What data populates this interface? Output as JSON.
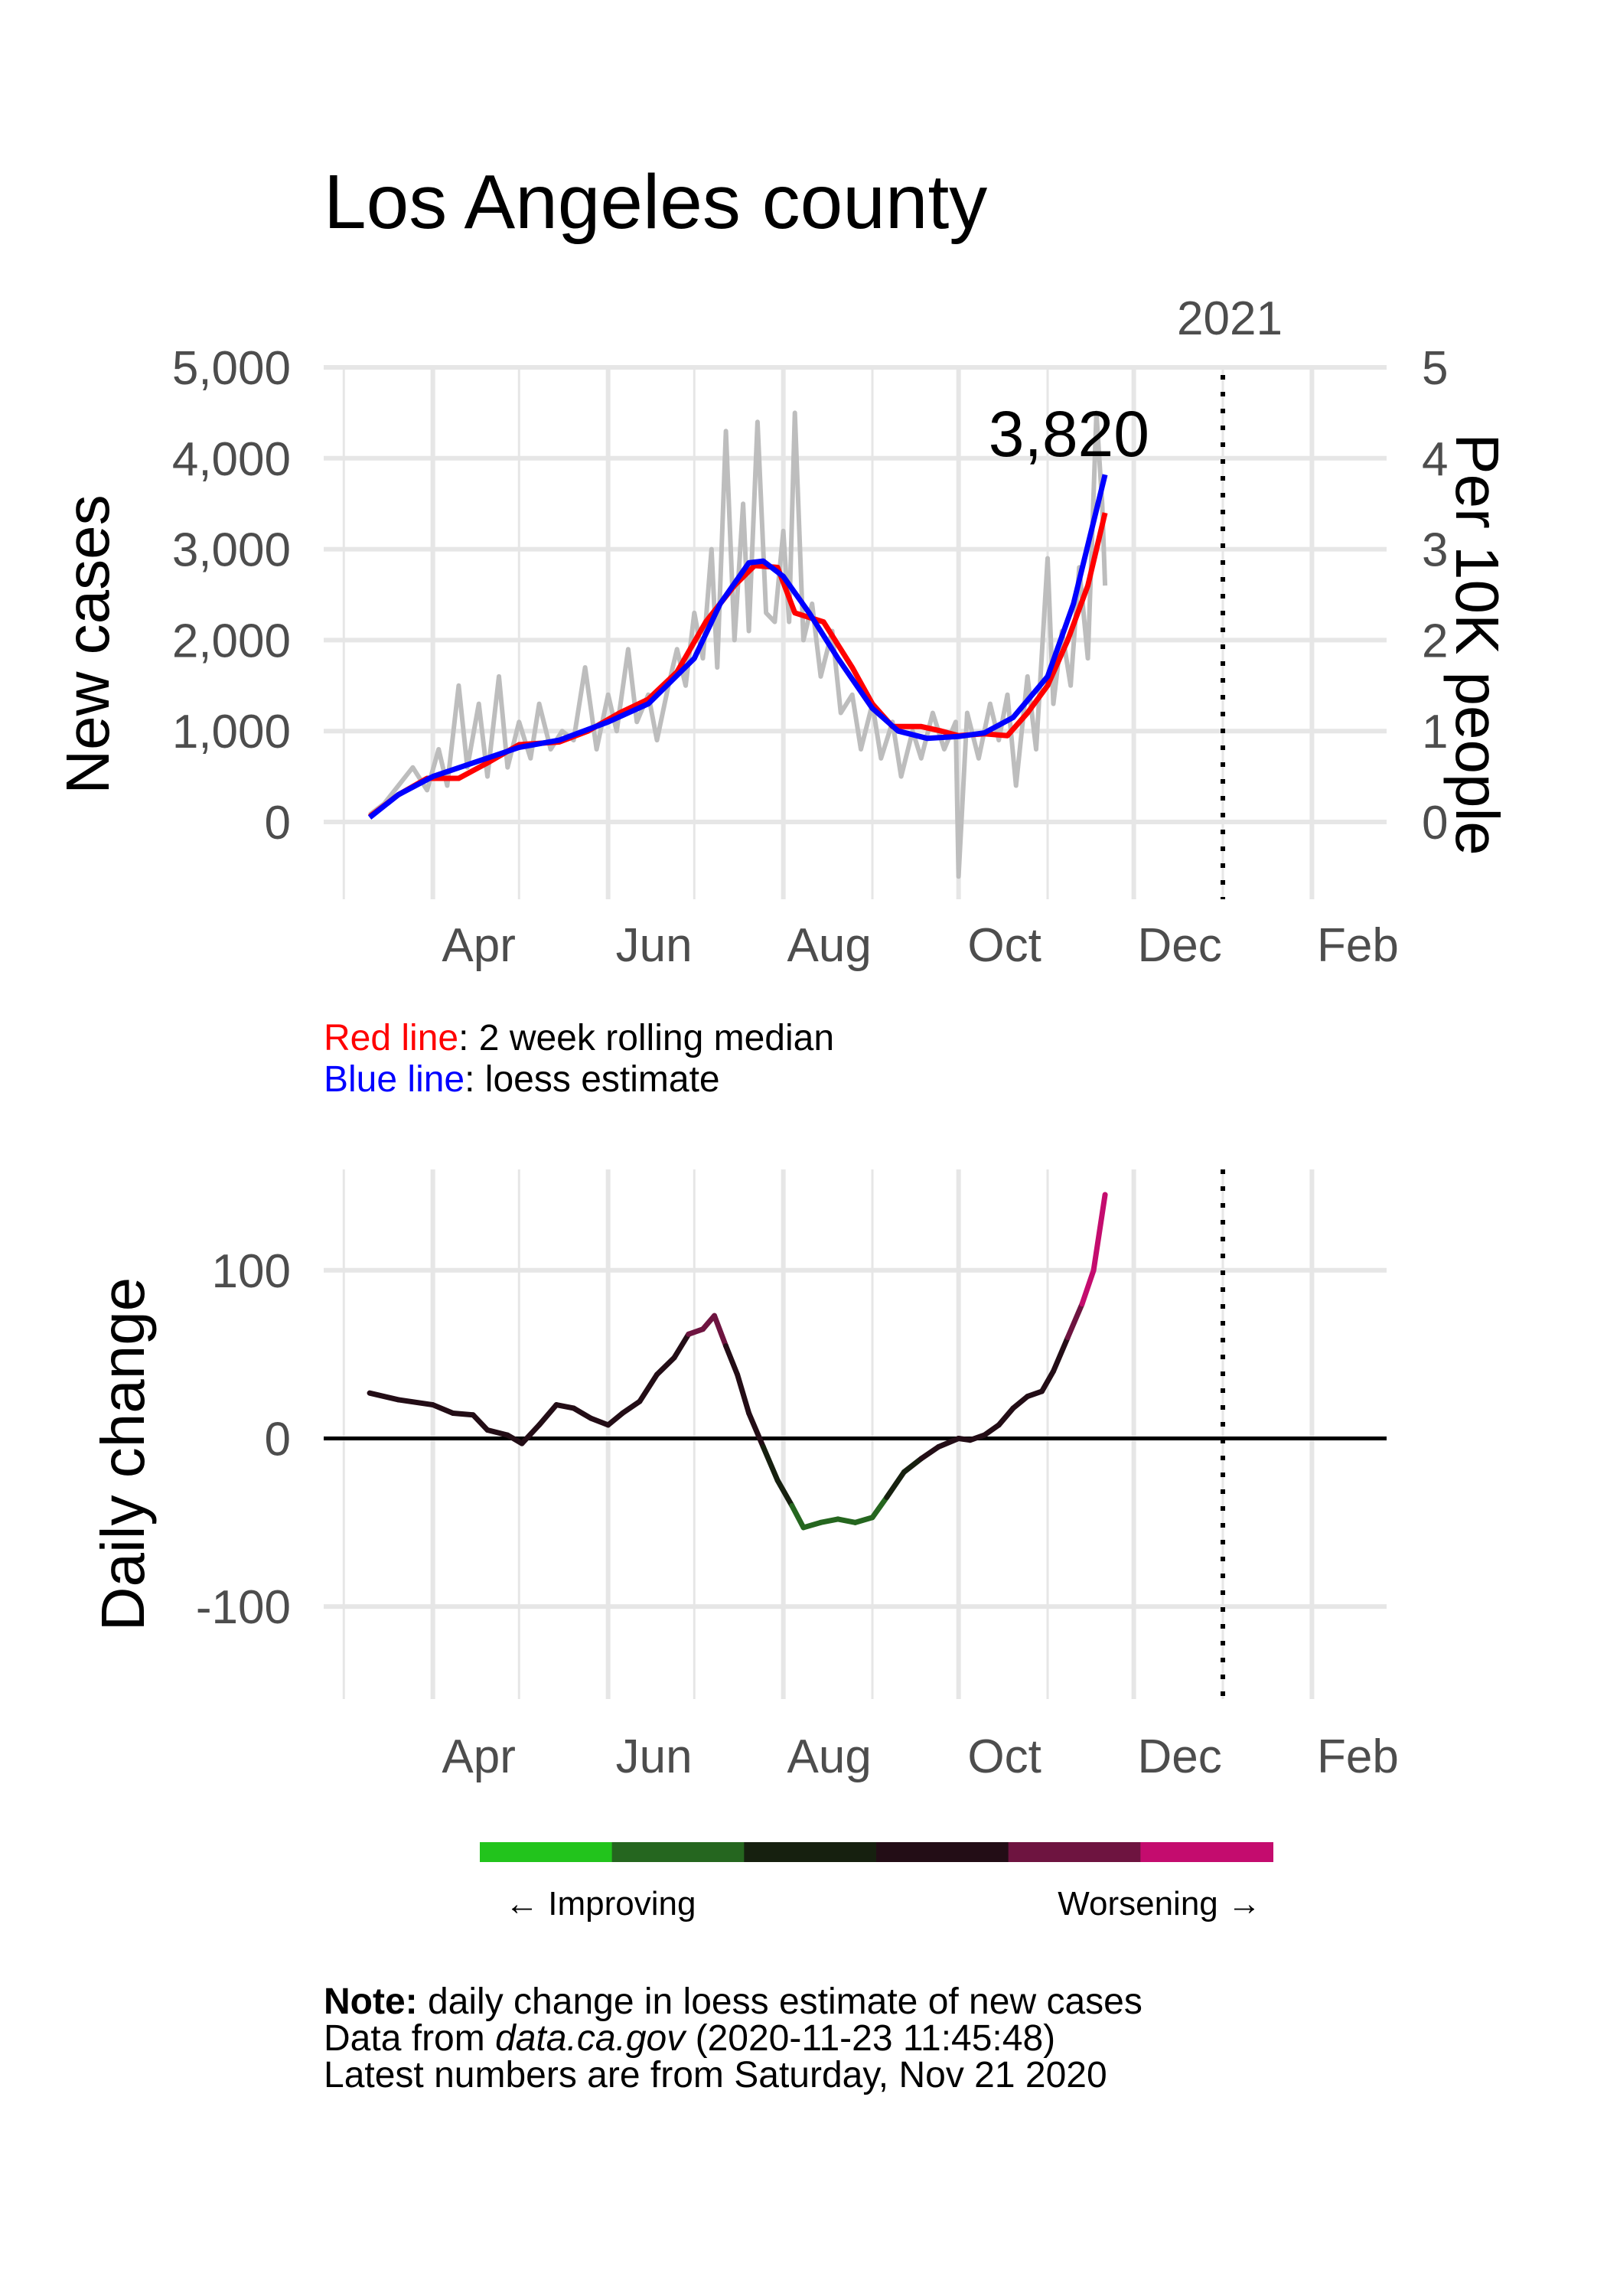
{
  "title": "Los Angeles county",
  "year_marker_label": "2021",
  "latest_value_label": "3,820",
  "top_chart": {
    "ylabel": "New cases",
    "y2label": "Per 10K people",
    "yticks": [
      "5,000",
      "4,000",
      "3,000",
      "2,000",
      "1,000",
      "0"
    ],
    "y2ticks": [
      "5",
      "4",
      "3",
      "2",
      "1",
      "0"
    ],
    "xticks": [
      "Apr",
      "Jun",
      "Aug",
      "Oct",
      "Dec",
      "Feb"
    ]
  },
  "legend": {
    "red_label": "Red line",
    "red_text": ": 2 week rolling median",
    "blue_label": "Blue line",
    "blue_text": ": loess estimate"
  },
  "bottom_chart": {
    "ylabel": "Daily change",
    "yticks": [
      "100",
      "0",
      "-100"
    ],
    "xticks": [
      "Apr",
      "Jun",
      "Aug",
      "Oct",
      "Dec",
      "Feb"
    ]
  },
  "color_scale": {
    "left_label": "← Improving",
    "right_label": "Worsening →",
    "colors": [
      "#22c41c",
      "#25661f",
      "#16200f",
      "#230d16",
      "#6e1440",
      "#c40c6e"
    ]
  },
  "note": {
    "bold": "Note:",
    "line1": " daily change in loess estimate of new cases",
    "line2_pre": "Data from ",
    "line2_italic": "data.ca.gov",
    "line2_post": " (2020-11-23 11:45:48)",
    "line3": "Latest numbers are from Saturday, Nov 21 2020"
  },
  "colors": {
    "raw": "#bdbdbd",
    "median": "#ff0000",
    "loess": "#0000ff",
    "grid": "#e6e6e6"
  },
  "chart_data": [
    {
      "type": "line",
      "title": "Los Angeles county",
      "ylabel": "New cases",
      "y2label": "Per 10K people",
      "ylim": [
        -850,
        5000
      ],
      "xlim": [
        "2020-02-23",
        "2021-02-27"
      ],
      "vline": "2021-01-01",
      "series": [
        {
          "name": "Red line",
          "points": [
            [
              "2020-03-10",
              60
            ],
            [
              "2020-03-20",
              300
            ],
            [
              "2020-03-30",
              480
            ],
            [
              "2020-04-10",
              480
            ],
            [
              "2020-04-20",
              650
            ],
            [
              "2020-05-01",
              850
            ],
            [
              "2020-05-15",
              880
            ],
            [
              "2020-05-25",
              1000
            ],
            [
              "2020-06-05",
              1200
            ],
            [
              "2020-06-15",
              1350
            ],
            [
              "2020-06-25",
              1650
            ],
            [
              "2020-07-05",
              2200
            ],
            [
              "2020-07-15",
              2600
            ],
            [
              "2020-07-22",
              2820
            ],
            [
              "2020-07-30",
              2800
            ],
            [
              "2020-08-05",
              2300
            ],
            [
              "2020-08-15",
              2200
            ],
            [
              "2020-08-25",
              1700
            ],
            [
              "2020-09-01",
              1300
            ],
            [
              "2020-09-08",
              1050
            ],
            [
              "2020-09-18",
              1050
            ],
            [
              "2020-09-25",
              1000
            ],
            [
              "2020-10-01",
              950
            ],
            [
              "2020-10-10",
              970
            ],
            [
              "2020-10-18",
              950
            ],
            [
              "2020-10-25",
              1200
            ],
            [
              "2020-11-01",
              1500
            ],
            [
              "2020-11-08",
              2000
            ],
            [
              "2020-11-15",
              2600
            ],
            [
              "2020-11-21",
              3400
            ]
          ]
        },
        {
          "name": "Blue line",
          "points": [
            [
              "2020-03-10",
              50
            ],
            [
              "2020-03-20",
              300
            ],
            [
              "2020-04-01",
              500
            ],
            [
              "2020-04-15",
              650
            ],
            [
              "2020-05-01",
              820
            ],
            [
              "2020-05-15",
              900
            ],
            [
              "2020-06-01",
              1100
            ],
            [
              "2020-06-15",
              1300
            ],
            [
              "2020-07-01",
              1800
            ],
            [
              "2020-07-10",
              2400
            ],
            [
              "2020-07-20",
              2850
            ],
            [
              "2020-07-25",
              2870
            ],
            [
              "2020-08-01",
              2700
            ],
            [
              "2020-08-10",
              2300
            ],
            [
              "2020-08-20",
              1800
            ],
            [
              "2020-09-01",
              1250
            ],
            [
              "2020-09-10",
              1000
            ],
            [
              "2020-09-20",
              920
            ],
            [
              "2020-10-01",
              940
            ],
            [
              "2020-10-10",
              980
            ],
            [
              "2020-10-20",
              1150
            ],
            [
              "2020-11-01",
              1600
            ],
            [
              "2020-11-10",
              2400
            ],
            [
              "2020-11-21",
              3820
            ]
          ]
        },
        {
          "name": "raw daily cases",
          "points": [
            [
              "2020-03-10",
              80
            ],
            [
              "2020-03-15",
              200
            ],
            [
              "2020-03-20",
              400
            ],
            [
              "2020-03-25",
              600
            ],
            [
              "2020-03-30",
              350
            ],
            [
              "2020-04-03",
              800
            ],
            [
              "2020-04-06",
              400
            ],
            [
              "2020-04-10",
              1500
            ],
            [
              "2020-04-13",
              600
            ],
            [
              "2020-04-17",
              1300
            ],
            [
              "2020-04-20",
              500
            ],
            [
              "2020-04-24",
              1600
            ],
            [
              "2020-04-27",
              600
            ],
            [
              "2020-05-01",
              1100
            ],
            [
              "2020-05-05",
              700
            ],
            [
              "2020-05-08",
              1300
            ],
            [
              "2020-05-12",
              800
            ],
            [
              "2020-05-16",
              1000
            ],
            [
              "2020-05-20",
              900
            ],
            [
              "2020-05-24",
              1700
            ],
            [
              "2020-05-28",
              800
            ],
            [
              "2020-06-01",
              1400
            ],
            [
              "2020-06-04",
              1000
            ],
            [
              "2020-06-08",
              1900
            ],
            [
              "2020-06-11",
              1100
            ],
            [
              "2020-06-15",
              1400
            ],
            [
              "2020-06-18",
              900
            ],
            [
              "2020-06-22",
              1500
            ],
            [
              "2020-06-25",
              1900
            ],
            [
              "2020-06-28",
              1500
            ],
            [
              "2020-07-01",
              2300
            ],
            [
              "2020-07-04",
              1800
            ],
            [
              "2020-07-07",
              3000
            ],
            [
              "2020-07-09",
              1700
            ],
            [
              "2020-07-12",
              4300
            ],
            [
              "2020-07-15",
              2000
            ],
            [
              "2020-07-18",
              3500
            ],
            [
              "2020-07-20",
              2100
            ],
            [
              "2020-07-23",
              4400
            ],
            [
              "2020-07-26",
              2300
            ],
            [
              "2020-07-29",
              2200
            ],
            [
              "2020-08-01",
              3200
            ],
            [
              "2020-08-03",
              2200
            ],
            [
              "2020-08-05",
              4500
            ],
            [
              "2020-08-08",
              2000
            ],
            [
              "2020-08-11",
              2400
            ],
            [
              "2020-08-14",
              1600
            ],
            [
              "2020-08-18",
              2100
            ],
            [
              "2020-08-21",
              1200
            ],
            [
              "2020-08-25",
              1400
            ],
            [
              "2020-08-28",
              800
            ],
            [
              "2020-09-01",
              1300
            ],
            [
              "2020-09-04",
              700
            ],
            [
              "2020-09-08",
              1100
            ],
            [
              "2020-09-11",
              500
            ],
            [
              "2020-09-15",
              1000
            ],
            [
              "2020-09-18",
              700
            ],
            [
              "2020-09-22",
              1200
            ],
            [
              "2020-09-26",
              800
            ],
            [
              "2020-09-30",
              1100
            ],
            [
              "2020-10-01",
              -600
            ],
            [
              "2020-10-04",
              1200
            ],
            [
              "2020-10-08",
              700
            ],
            [
              "2020-10-12",
              1300
            ],
            [
              "2020-10-15",
              900
            ],
            [
              "2020-10-18",
              1400
            ],
            [
              "2020-10-21",
              400
            ],
            [
              "2020-10-25",
              1600
            ],
            [
              "2020-10-28",
              800
            ],
            [
              "2020-11-01",
              2900
            ],
            [
              "2020-11-03",
              1300
            ],
            [
              "2020-11-06",
              2100
            ],
            [
              "2020-11-09",
              1500
            ],
            [
              "2020-11-12",
              2800
            ],
            [
              "2020-11-15",
              1800
            ],
            [
              "2020-11-18",
              4500
            ],
            [
              "2020-11-20",
              3500
            ],
            [
              "2020-11-21",
              2600
            ]
          ]
        }
      ]
    },
    {
      "type": "line",
      "ylabel": "Daily change",
      "ylim": [
        -155,
        160
      ],
      "xlim": [
        "2020-02-23",
        "2021-02-27"
      ],
      "hline": 0,
      "vline": "2021-01-01",
      "series": [
        {
          "name": "daily change in loess estimate",
          "points": [
            [
              "2020-03-10",
              27
            ],
            [
              "2020-03-20",
              23
            ],
            [
              "2020-04-01",
              20
            ],
            [
              "2020-04-08",
              15
            ],
            [
              "2020-04-15",
              14
            ],
            [
              "2020-04-20",
              5
            ],
            [
              "2020-04-27",
              2
            ],
            [
              "2020-05-02",
              -3
            ],
            [
              "2020-05-08",
              8
            ],
            [
              "2020-05-14",
              20
            ],
            [
              "2020-05-20",
              18
            ],
            [
              "2020-05-26",
              12
            ],
            [
              "2020-06-01",
              8
            ],
            [
              "2020-06-06",
              15
            ],
            [
              "2020-06-12",
              22
            ],
            [
              "2020-06-18",
              38
            ],
            [
              "2020-06-24",
              48
            ],
            [
              "2020-06-29",
              62
            ],
            [
              "2020-07-04",
              65
            ],
            [
              "2020-07-08",
              73
            ],
            [
              "2020-07-12",
              55
            ],
            [
              "2020-07-16",
              38
            ],
            [
              "2020-07-20",
              15
            ],
            [
              "2020-07-25",
              -5
            ],
            [
              "2020-07-30",
              -25
            ],
            [
              "2020-08-04",
              -40
            ],
            [
              "2020-08-08",
              -53
            ],
            [
              "2020-08-14",
              -50
            ],
            [
              "2020-08-20",
              -48
            ],
            [
              "2020-08-26",
              -50
            ],
            [
              "2020-09-01",
              -47
            ],
            [
              "2020-09-06",
              -35
            ],
            [
              "2020-09-12",
              -20
            ],
            [
              "2020-09-18",
              -12
            ],
            [
              "2020-09-24",
              -5
            ],
            [
              "2020-10-01",
              0
            ],
            [
              "2020-10-05",
              -1
            ],
            [
              "2020-10-10",
              2
            ],
            [
              "2020-10-15",
              8
            ],
            [
              "2020-10-20",
              18
            ],
            [
              "2020-10-25",
              25
            ],
            [
              "2020-10-30",
              28
            ],
            [
              "2020-11-03",
              40
            ],
            [
              "2020-11-08",
              60
            ],
            [
              "2020-11-13",
              80
            ],
            [
              "2020-11-17",
              100
            ],
            [
              "2020-11-21",
              145
            ]
          ]
        }
      ]
    }
  ]
}
